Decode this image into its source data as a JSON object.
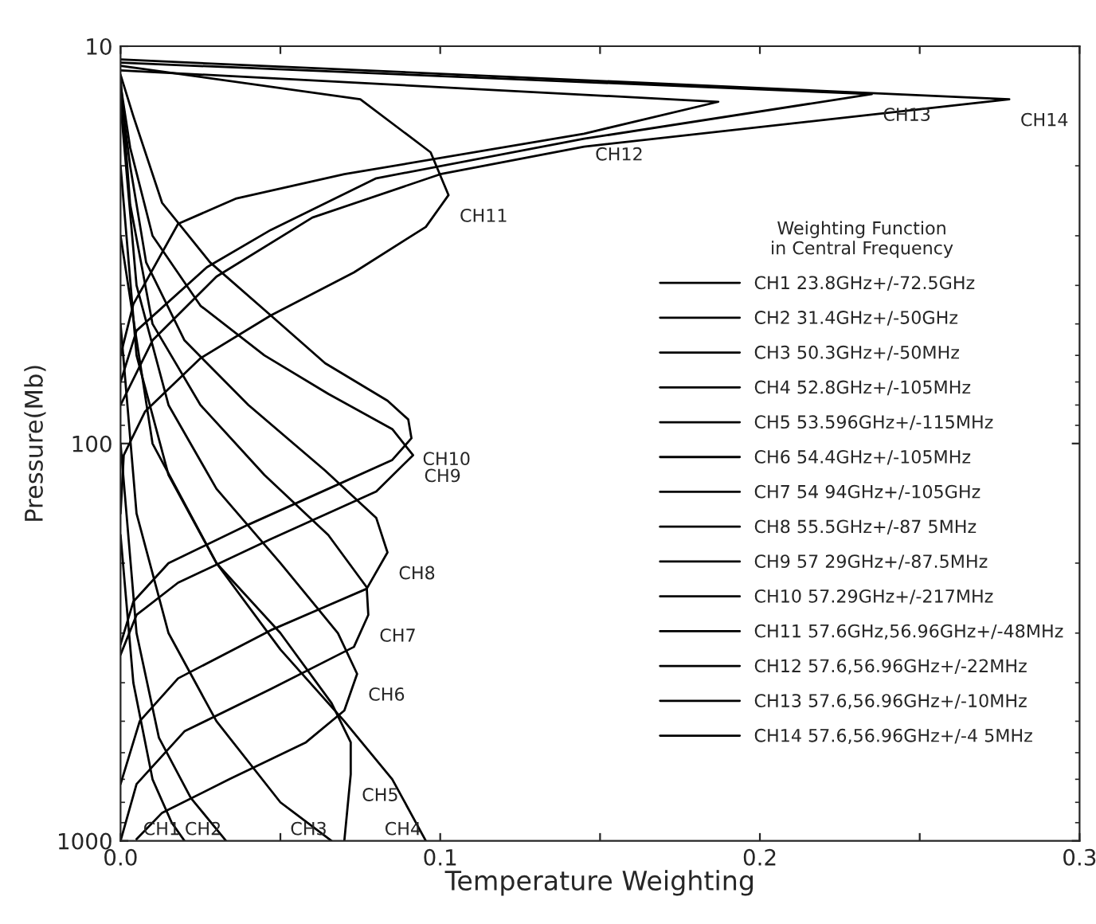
{
  "chart_data": {
    "type": "line",
    "xlabel": "Temperature Weighting",
    "ylabel": "Pressure(Mb)",
    "legend_title": "Weighting Function\nin Central Frequency",
    "log": "y",
    "xlim": [
      0,
      0.3
    ],
    "ylim": [
      1000,
      10
    ],
    "xticks": [
      {
        "value": 0,
        "label": "0.0"
      },
      {
        "value": 0.05,
        "label": null
      },
      0.1,
      {
        "value": 0.15,
        "label": null
      },
      0.2,
      {
        "value": 0.25,
        "label": null
      },
      0.3
    ],
    "yticks": [
      10,
      100,
      1000
    ],
    "grid": false,
    "legend": "right",
    "marker": "none",
    "line_style": "solid",
    "series": [
      {
        "name": "CH1 23.8GHz+/-72.5GHz",
        "color": "#000000",
        "x": [
          0,
          0.004,
          0.01,
          0.016,
          0.02
        ],
        "values": [
          170,
          400,
          700,
          900,
          1000
        ]
      },
      {
        "name": "CH2 31.4GHz+/-50GHz",
        "color": "#000000",
        "x": [
          0,
          0.005,
          0.012,
          0.022,
          0.033
        ],
        "values": [
          100,
          300,
          550,
          780,
          1000
        ]
      },
      {
        "name": "CH3 50.3GHz+/-50MHz",
        "color": "#000000",
        "x": [
          0,
          0.005,
          0.015,
          0.03,
          0.05,
          0.066
        ],
        "values": [
          50,
          150,
          300,
          500,
          800,
          1000
        ]
      },
      {
        "name": "CH4 52.8GHz+/-105MHz",
        "color": "#000000",
        "x": [
          0,
          0.01,
          0.03,
          0.05,
          0.07,
          0.085,
          0.0955
        ],
        "values": [
          30,
          100,
          200,
          330,
          500,
          700,
          1000
        ]
      },
      {
        "name": "CH5 53.596GHz+/-115MHz",
        "color": "#000000",
        "x": [
          0,
          0.005,
          0.015,
          0.03,
          0.05,
          0.066,
          0.072,
          0.072,
          0.07
        ],
        "values": [
          20,
          60,
          120,
          200,
          300,
          450,
          565,
          680,
          1000
        ]
      },
      {
        "name": "CH6 54.4GHz+/-105MHz",
        "color": "#000000",
        "x": [
          0,
          0.005,
          0.015,
          0.03,
          0.05,
          0.068,
          0.074,
          0.07,
          0.058,
          0.034,
          0.013,
          0.005
        ],
        "values": [
          14,
          40,
          80,
          130,
          200,
          300,
          380,
          470,
          565,
          700,
          850,
          990
        ]
      },
      {
        "name": "CH7 54 94GHz+/-105GHz",
        "color": "#000000",
        "x": [
          0,
          0.003,
          0.01,
          0.025,
          0.045,
          0.065,
          0.077,
          0.0775,
          0.073,
          0.047,
          0.02,
          0.005,
          0
        ],
        "values": [
          12,
          25,
          50,
          80,
          120,
          170,
          230,
          270,
          325,
          415,
          530,
          720,
          1000
        ]
      },
      {
        "name": "CH8 55.5GHz+/-87 5MHz",
        "color": "#000000",
        "x": [
          0,
          0.003,
          0.008,
          0.02,
          0.04,
          0.064,
          0.08,
          0.0835,
          0.077,
          0.047,
          0.018,
          0.006,
          0
        ],
        "values": [
          13,
          20,
          35,
          55,
          80,
          117,
          154,
          188,
          232,
          295,
          390,
          500,
          720
        ]
      },
      {
        "name": "CH9 57 29GHz+/-87.5MHz",
        "color": "#000000",
        "x": [
          0,
          0.003,
          0.01,
          0.025,
          0.045,
          0.065,
          0.085,
          0.0915,
          0.08,
          0.047,
          0.018,
          0.005,
          0
        ],
        "values": [
          12.5,
          18,
          30,
          45,
          60,
          75,
          92,
          107,
          132,
          174,
          224,
          270,
          340
        ]
      },
      {
        "name": "CH10 57.29GHz+/-217MHz",
        "color": "#000000",
        "x": [
          0,
          0.004,
          0.013,
          0.028,
          0.047,
          0.064,
          0.0835,
          0.09,
          0.091,
          0.085,
          0.065,
          0.04,
          0.015,
          0.004,
          0
        ],
        "values": [
          11.8,
          15,
          24.8,
          35,
          47.6,
          62.8,
          78,
          87,
          97,
          110,
          130,
          160,
          200,
          250,
          320
        ]
      },
      {
        "name": "CH11 57.6GHz,56.96GHz+/-48MHz",
        "color": "#000000",
        "x": [
          0,
          0.075,
          0.097,
          0.1026,
          0.0955,
          0.073,
          0.047,
          0.025,
          0.0077,
          0.001,
          0
        ],
        "values": [
          11.2,
          13.6,
          18.5,
          23.7,
          28.5,
          37.1,
          47.6,
          61,
          83,
          107,
          150
        ]
      },
      {
        "name": "CH12 57.6,56.96GHz+/-22MHz",
        "color": "#000000",
        "x": [
          0,
          0.187,
          0.145,
          0.07,
          0.036,
          0.018,
          0.004,
          0
        ],
        "values": [
          11.5,
          13.8,
          16.6,
          21,
          24.2,
          28,
          44.6,
          60
        ]
      },
      {
        "name": "CH13 57.6,56.96GHz+/-10MHz",
        "color": "#000000",
        "x": [
          0,
          0.235,
          0.145,
          0.08,
          0.047,
          0.027,
          0.005,
          0
        ],
        "values": [
          11,
          13.2,
          17.1,
          21.5,
          29,
          36,
          52,
          70
        ]
      },
      {
        "name": "CH14 57.6,56.96GHz+/-4 5MHz",
        "color": "#000000",
        "x": [
          0,
          0.278,
          0.145,
          0.1,
          0.06,
          0.03,
          0.01,
          0
        ],
        "values": [
          10.8,
          13.6,
          17.9,
          21,
          27,
          38,
          55,
          80
        ]
      }
    ],
    "annotations": [
      {
        "text": "CH1",
        "x": 0.02,
        "y": 1000
      },
      {
        "text": "CH2",
        "x": 0.033,
        "y": 1000
      },
      {
        "text": "CH3",
        "x": 0.066,
        "y": 1000
      },
      {
        "text": "CH4",
        "x": 0.0955,
        "y": 1000
      },
      {
        "text": "CH5",
        "x": 0.072,
        "y": 680
      },
      {
        "text": "CH6",
        "x": 0.074,
        "y": 380
      },
      {
        "text": "CH7",
        "x": 0.0775,
        "y": 270
      },
      {
        "text": "CH8",
        "x": 0.0835,
        "y": 188
      },
      {
        "text": "CH9",
        "x": 0.0915,
        "y": 107
      },
      {
        "text": "CH10",
        "x": 0.091,
        "y": 97
      },
      {
        "text": "CH11",
        "x": 0.1026,
        "y": 23.7
      },
      {
        "text": "CH12",
        "x": 0.145,
        "y": 16.6
      },
      {
        "text": "CH13",
        "x": 0.235,
        "y": 13.2
      },
      {
        "text": "CH14",
        "x": 0.278,
        "y": 13.6
      }
    ]
  }
}
